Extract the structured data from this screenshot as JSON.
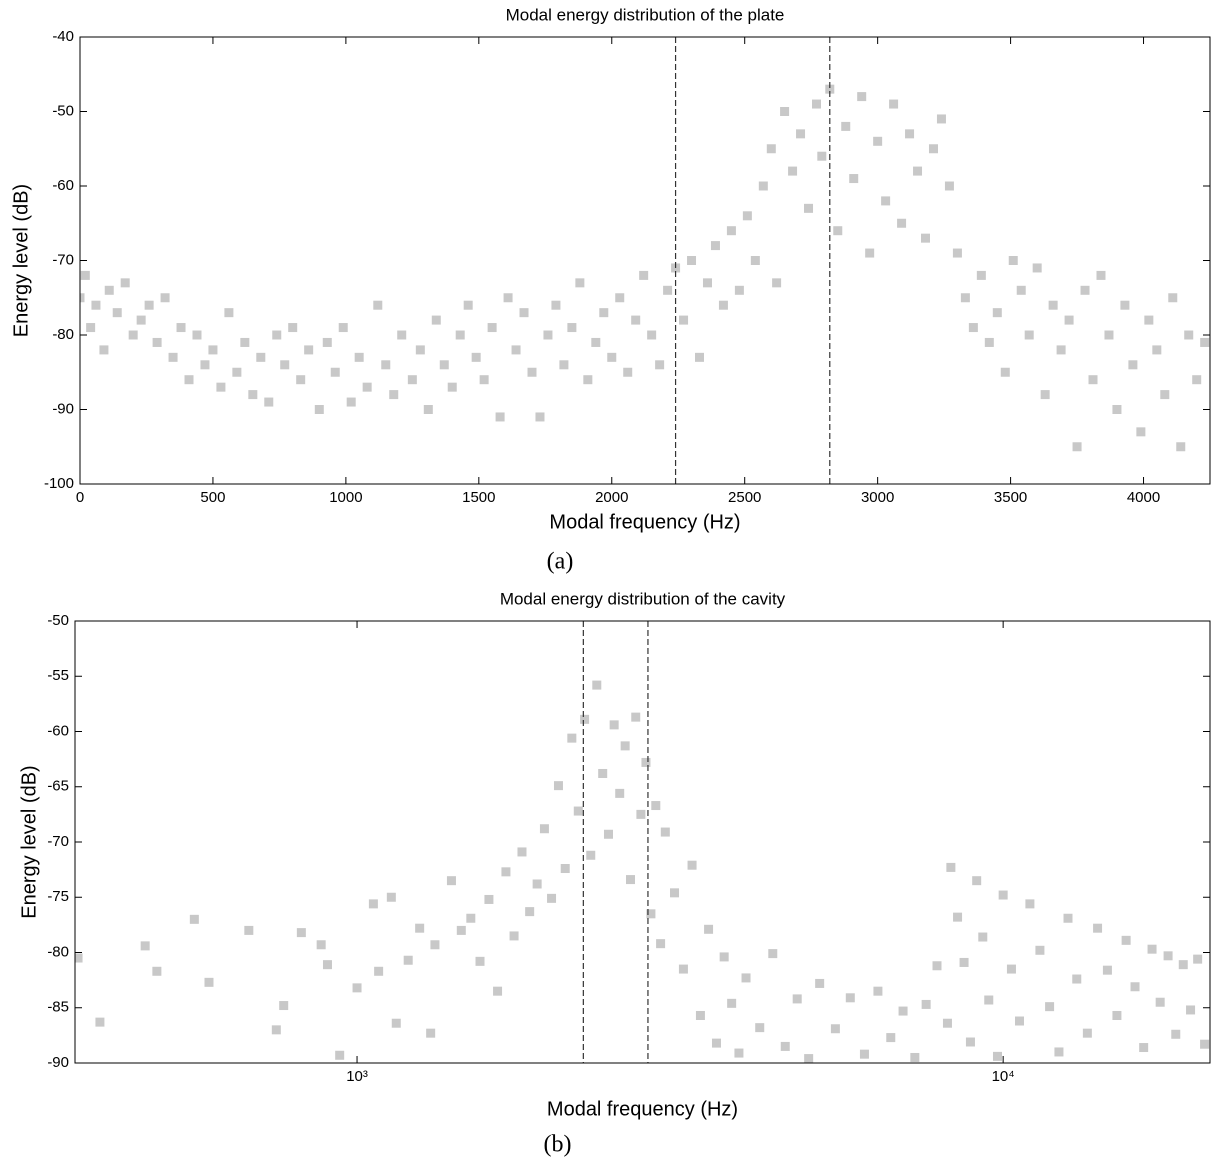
{
  "chart_data": [
    {
      "type": "scatter",
      "title": "Modal energy distribution of the plate",
      "x_label": "Modal frequency (Hz)",
      "y_label": "Energy level (dB)",
      "caption": "(a)",
      "color": "#c8c8c8",
      "xlim": [
        0,
        4250
      ],
      "ylim": [
        -100,
        -40
      ],
      "xticks": [
        0,
        500,
        1000,
        1500,
        2000,
        2500,
        3000,
        3500,
        4000
      ],
      "yticks": [
        -100,
        -90,
        -80,
        -70,
        -60,
        -50,
        -40
      ],
      "vlines": [
        2240,
        2820
      ],
      "x": [
        0,
        20,
        40,
        60,
        90,
        110,
        140,
        170,
        200,
        230,
        260,
        290,
        320,
        350,
        380,
        410,
        440,
        470,
        500,
        530,
        560,
        590,
        620,
        650,
        680,
        710,
        740,
        770,
        800,
        830,
        860,
        900,
        930,
        960,
        990,
        1020,
        1050,
        1080,
        1120,
        1150,
        1180,
        1210,
        1250,
        1280,
        1310,
        1340,
        1370,
        1400,
        1430,
        1460,
        1490,
        1520,
        1550,
        1580,
        1610,
        1640,
        1670,
        1700,
        1730,
        1760,
        1790,
        1820,
        1850,
        1880,
        1910,
        1940,
        1970,
        2000,
        2030,
        2060,
        2090,
        2120,
        2150,
        2180,
        2210,
        2240,
        2270,
        2300,
        2330,
        2360,
        2390,
        2420,
        2450,
        2480,
        2510,
        2540,
        2570,
        2600,
        2620,
        2650,
        2680,
        2710,
        2740,
        2770,
        2790,
        2820,
        2850,
        2880,
        2910,
        2940,
        2970,
        3000,
        3030,
        3060,
        3090,
        3120,
        3150,
        3180,
        3210,
        3240,
        3270,
        3300,
        3330,
        3360,
        3390,
        3420,
        3450,
        3480,
        3510,
        3540,
        3570,
        3600,
        3630,
        3660,
        3690,
        3720,
        3750,
        3780,
        3810,
        3840,
        3870,
        3900,
        3930,
        3960,
        3990,
        4020,
        4050,
        4080,
        4110,
        4140,
        4170,
        4200,
        4230
      ],
      "y": [
        -75,
        -72,
        -79,
        -76,
        -82,
        -74,
        -77,
        -73,
        -80,
        -78,
        -76,
        -81,
        -75,
        -83,
        -79,
        -86,
        -80,
        -84,
        -82,
        -87,
        -77,
        -85,
        -81,
        -88,
        -83,
        -89,
        -80,
        -84,
        -79,
        -86,
        -82,
        -90,
        -81,
        -85,
        -79,
        -89,
        -83,
        -87,
        -76,
        -84,
        -88,
        -80,
        -86,
        -82,
        -90,
        -78,
        -84,
        -87,
        -80,
        -76,
        -83,
        -86,
        -79,
        -91,
        -75,
        -82,
        -77,
        -85,
        -91,
        -80,
        -76,
        -84,
        -79,
        -73,
        -86,
        -81,
        -77,
        -83,
        -75,
        -85,
        -78,
        -72,
        -80,
        -84,
        -74,
        -71,
        -78,
        -70,
        -83,
        -73,
        -68,
        -76,
        -66,
        -74,
        -64,
        -70,
        -60,
        -55,
        -73,
        -50,
        -58,
        -53,
        -63,
        -49,
        -56,
        -47,
        -66,
        -52,
        -59,
        -48,
        -69,
        -54,
        -62,
        -49,
        -65,
        -53,
        -58,
        -67,
        -55,
        -51,
        -60,
        -69,
        -75,
        -79,
        -72,
        -81,
        -77,
        -85,
        -70,
        -74,
        -80,
        -71,
        -88,
        -76,
        -82,
        -78,
        -95,
        -74,
        -86,
        -72,
        -80,
        -90,
        -76,
        -84,
        -93,
        -78,
        -82,
        -88,
        -75,
        -95,
        -80,
        -86,
        -81
      ]
    },
    {
      "type": "scatter",
      "title": "Modal energy distribution of the cavity",
      "x_label": "Modal frequency (Hz)",
      "y_label": "Energy level (dB)",
      "caption": "(b)",
      "color": "#c8c8c8",
      "xscale": "log",
      "xlim": [
        366,
        20900
      ],
      "ylim": [
        -90,
        -50
      ],
      "xticks": [
        {
          "value": 1000,
          "label": "10³"
        },
        {
          "value": 10000,
          "label": "10⁴"
        }
      ],
      "yticks": [
        -90,
        -85,
        -80,
        -75,
        -70,
        -65,
        -60,
        -55,
        -50
      ],
      "vlines": [
        2240,
        2820
      ],
      "x": [
        370,
        400,
        470,
        490,
        560,
        590,
        680,
        750,
        770,
        820,
        880,
        900,
        940,
        1000,
        1060,
        1080,
        1130,
        1150,
        1200,
        1250,
        1300,
        1320,
        1400,
        1450,
        1500,
        1550,
        1600,
        1650,
        1700,
        1750,
        1800,
        1850,
        1900,
        1950,
        2000,
        2050,
        2100,
        2150,
        2200,
        2250,
        2300,
        2350,
        2400,
        2450,
        2500,
        2550,
        2600,
        2650,
        2700,
        2750,
        2800,
        2850,
        2900,
        2950,
        3000,
        3100,
        3200,
        3300,
        3400,
        3500,
        3600,
        3700,
        3800,
        3900,
        4000,
        4200,
        4400,
        4600,
        4800,
        5000,
        5200,
        5500,
        5800,
        6100,
        6400,
        6700,
        7000,
        7300,
        7600,
        7900,
        8200,
        8300,
        8500,
        8700,
        8900,
        9100,
        9300,
        9500,
        9800,
        10000,
        10300,
        10600,
        11000,
        11400,
        11800,
        12200,
        12600,
        13000,
        13500,
        14000,
        14500,
        15000,
        15500,
        16000,
        16500,
        17000,
        17500,
        18000,
        18500,
        19000,
        19500,
        20000,
        20500
      ],
      "y": [
        -80.5,
        -86.3,
        -79.4,
        -81.7,
        -77,
        -82.7,
        -78,
        -87,
        -84.8,
        -78.2,
        -79.3,
        -81.1,
        -89.3,
        -83.2,
        -75.6,
        -81.7,
        -75,
        -86.4,
        -80.7,
        -77.8,
        -87.3,
        -79.3,
        -73.5,
        -78,
        -76.9,
        -80.8,
        -75.2,
        -83.5,
        -72.7,
        -78.5,
        -70.9,
        -76.3,
        -73.8,
        -68.8,
        -75.1,
        -64.9,
        -72.4,
        -60.6,
        -67.2,
        -58.9,
        -71.2,
        -55.8,
        -63.8,
        -69.3,
        -59.4,
        -65.6,
        -61.3,
        -73.4,
        -58.7,
        -67.5,
        -62.8,
        -76.5,
        -66.7,
        -79.2,
        -69.1,
        -74.6,
        -81.5,
        -72.1,
        -85.7,
        -77.9,
        -88.2,
        -80.4,
        -84.6,
        -89.1,
        -82.3,
        -86.8,
        -80.1,
        -88.5,
        -84.2,
        -89.6,
        -82.8,
        -86.9,
        -84.1,
        -89.2,
        -83.5,
        -87.7,
        -85.3,
        -89.5,
        -84.7,
        -81.2,
        -86.4,
        -72.3,
        -76.8,
        -80.9,
        -88.1,
        -73.5,
        -78.6,
        -84.3,
        -89.4,
        -74.8,
        -81.5,
        -86.2,
        -75.6,
        -79.8,
        -84.9,
        -89,
        -76.9,
        -82.4,
        -87.3,
        -77.8,
        -81.6,
        -85.7,
        -78.9,
        -83.1,
        -88.6,
        -79.7,
        -84.5,
        -80.3,
        -87.4,
        -81.1,
        -85.2,
        -80.6,
        -88.3
      ]
    }
  ]
}
